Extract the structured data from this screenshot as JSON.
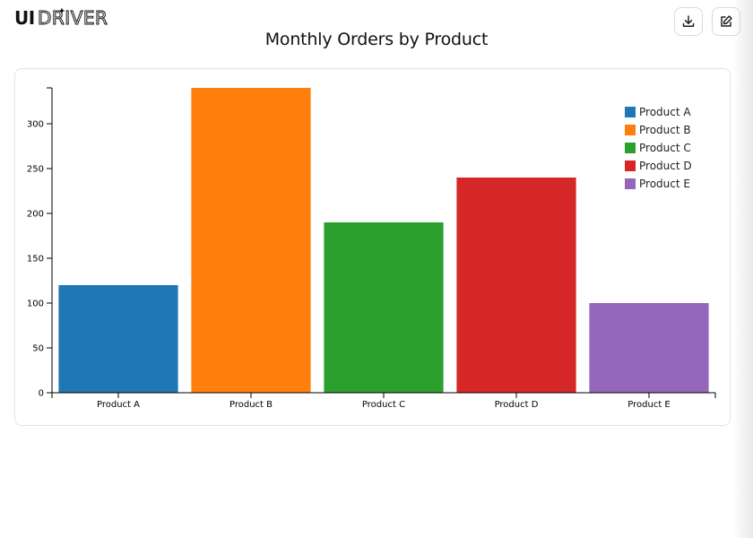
{
  "app": {
    "logo_text": "UIDRIVER",
    "download_icon": "download-icon",
    "edit_icon": "edit-icon"
  },
  "chart_data": {
    "type": "bar",
    "title": "Monthly Orders by Product",
    "xlabel": "",
    "ylabel": "",
    "categories": [
      "Product A",
      "Product B",
      "Product C",
      "Product D",
      "Product E"
    ],
    "values": [
      120,
      340,
      190,
      240,
      100
    ],
    "colors": [
      "#1f77b4",
      "#ff7f0e",
      "#2ca02c",
      "#d62728",
      "#9467bd"
    ],
    "ylim": [
      0,
      340
    ],
    "yticks": [
      "0",
      "50",
      "100",
      "150",
      "200",
      "250",
      "300"
    ],
    "grid": false,
    "legend": {
      "position": "top-right",
      "entries": [
        "Product A",
        "Product B",
        "Product C",
        "Product D",
        "Product E"
      ]
    }
  }
}
